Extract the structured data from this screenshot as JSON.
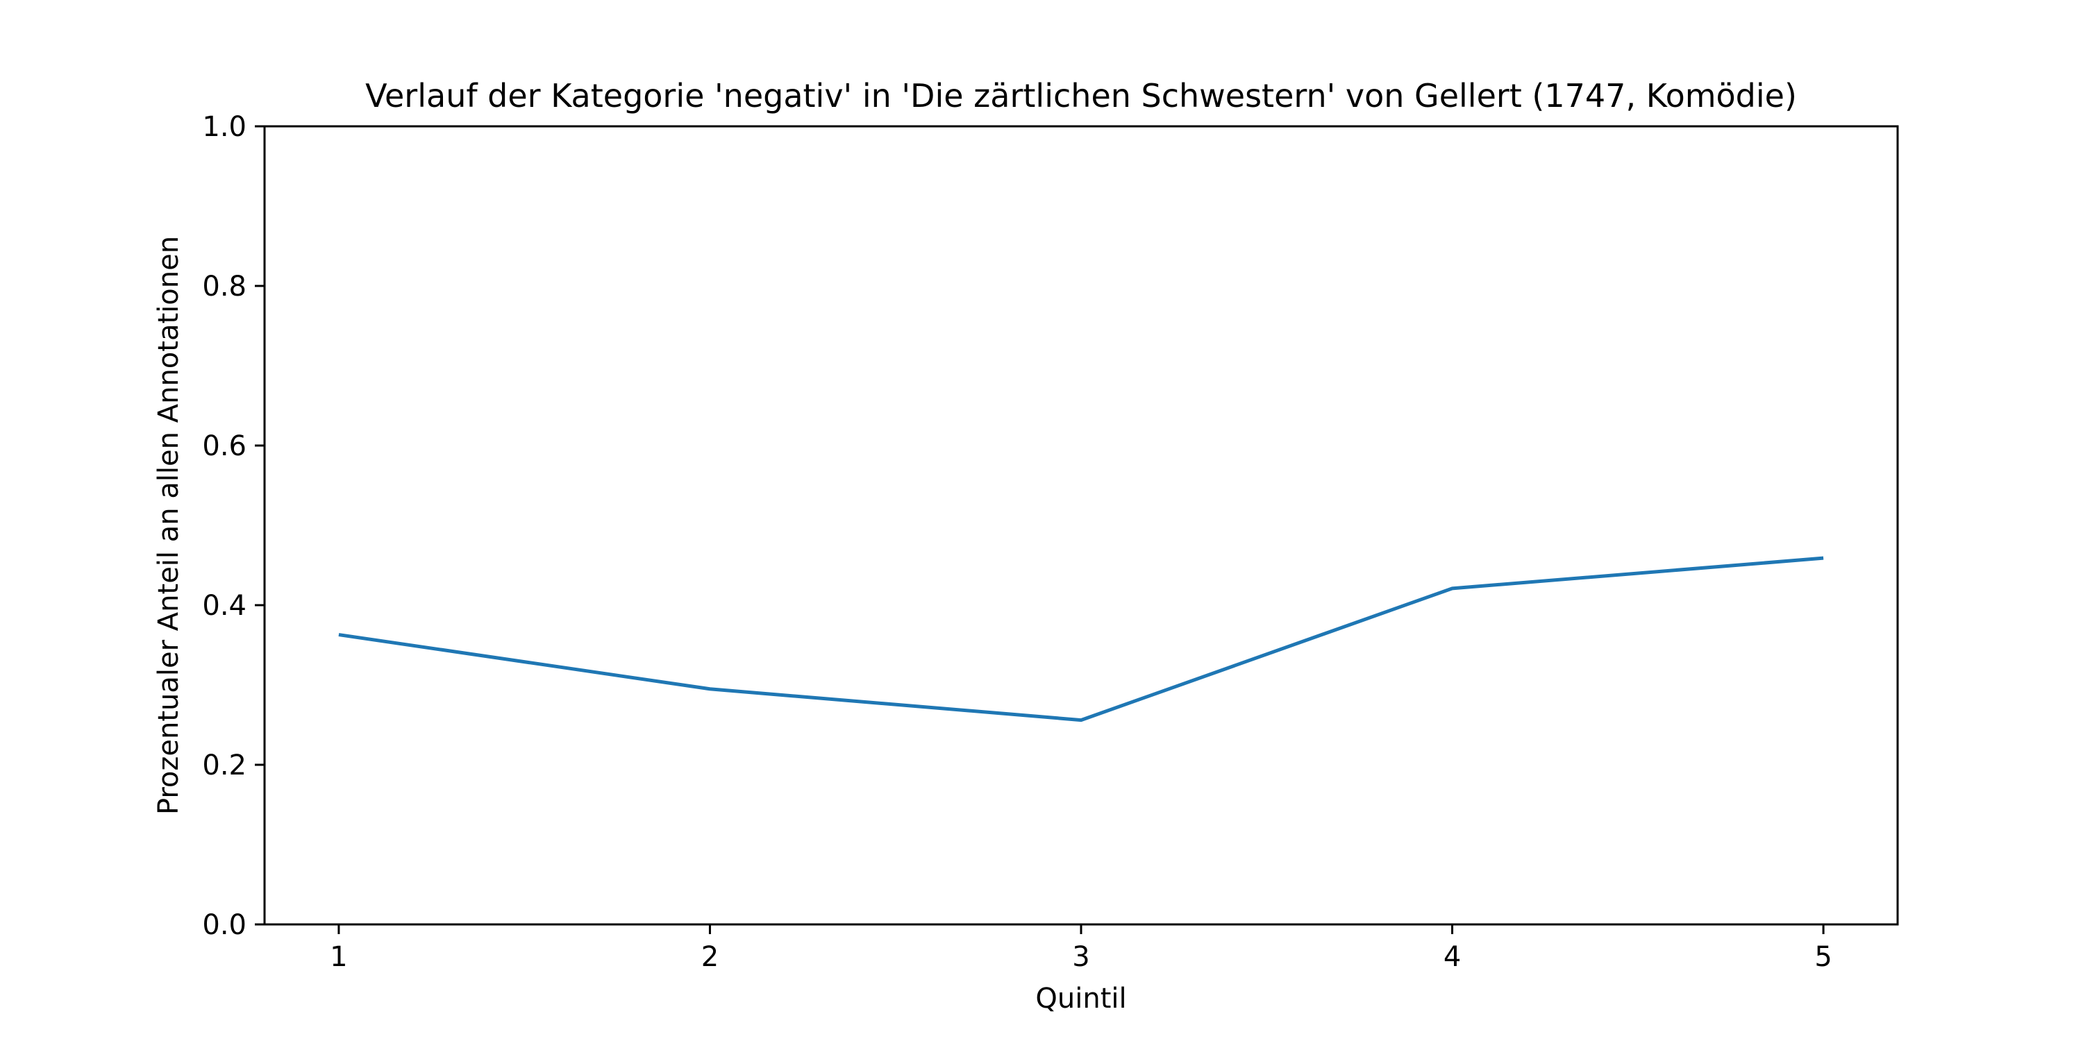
{
  "chart_data": {
    "type": "line",
    "title": "Verlauf der Kategorie 'negativ' in 'Die zärtlichen Schwestern' von Gellert (1747, Komödie)",
    "xlabel": "Quintil",
    "ylabel": "Prozentualer Anteil an allen Annotationen",
    "x": [
      1,
      2,
      3,
      4,
      5
    ],
    "x_tick_labels": [
      "1",
      "2",
      "3",
      "4",
      "5"
    ],
    "xlim": [
      0.8,
      5.2
    ],
    "ylim": [
      0.0,
      1.0
    ],
    "y_ticks": [
      0.0,
      0.2,
      0.4,
      0.6,
      0.8,
      1.0
    ],
    "y_tick_labels": [
      "0.0",
      "0.2",
      "0.4",
      "0.6",
      "0.8",
      "1.0"
    ],
    "grid": false,
    "series": [
      {
        "values": [
          0.363,
          0.295,
          0.256,
          0.421,
          0.459
        ],
        "color": "#1f77b4"
      }
    ]
  }
}
